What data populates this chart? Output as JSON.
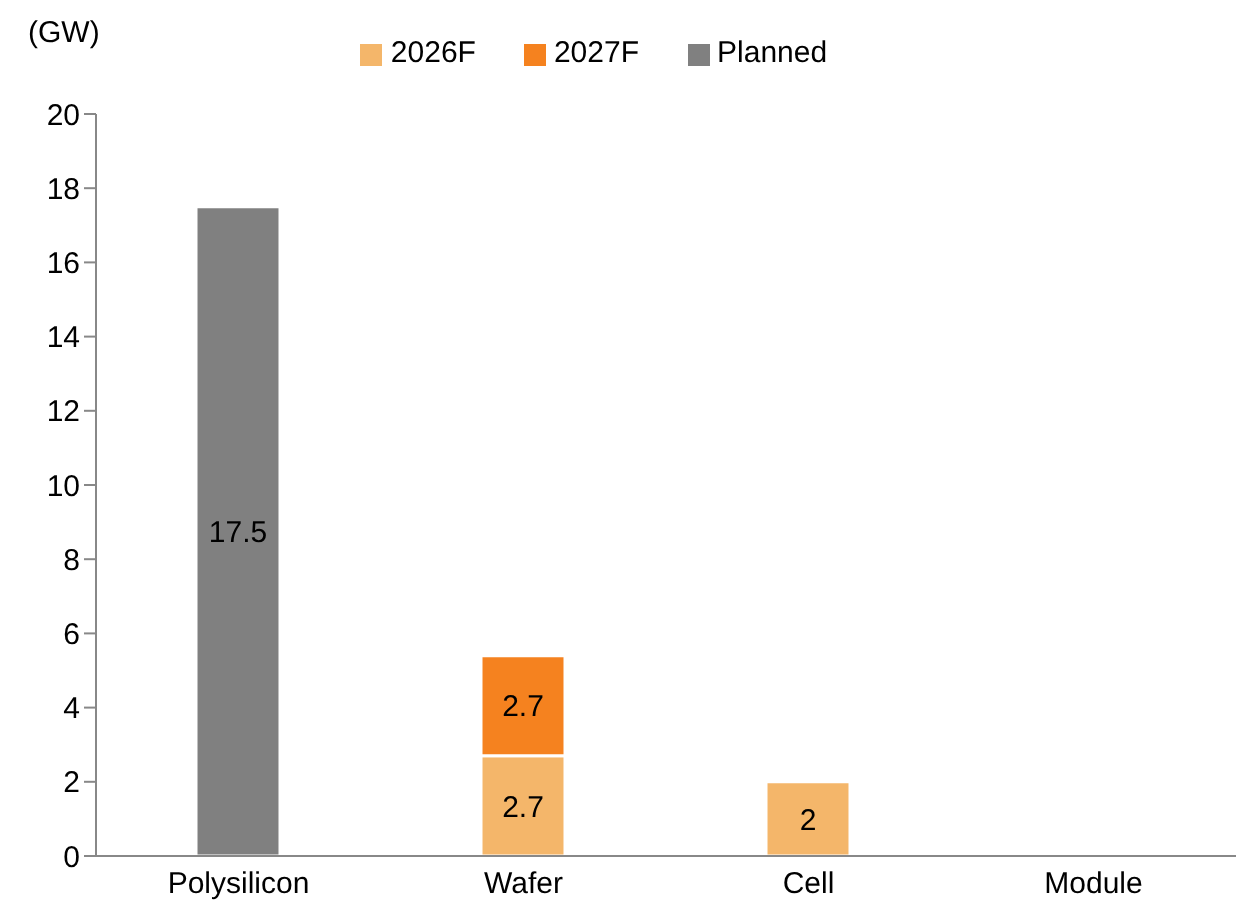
{
  "chart_data": {
    "type": "bar",
    "ylabel": "(GW)",
    "categories": [
      "Polysilicon",
      "Wafer",
      "Cell",
      "Module"
    ],
    "stacked": true,
    "data_labels": true,
    "grid": false,
    "legend": "top",
    "ylim": [
      0,
      20
    ],
    "yticks": [
      0,
      2,
      4,
      6,
      8,
      10,
      12,
      14,
      16,
      18,
      20
    ],
    "series": [
      {
        "name": "Planned",
        "color": "#808080",
        "values": [
          17.5,
          null,
          null,
          null
        ]
      },
      {
        "name": "2026F",
        "color": "#f4b66a",
        "values": [
          null,
          2.7,
          2,
          null
        ]
      },
      {
        "name": "2027F",
        "color": "#f5821f",
        "values": [
          null,
          2.7,
          null,
          null
        ]
      }
    ]
  }
}
